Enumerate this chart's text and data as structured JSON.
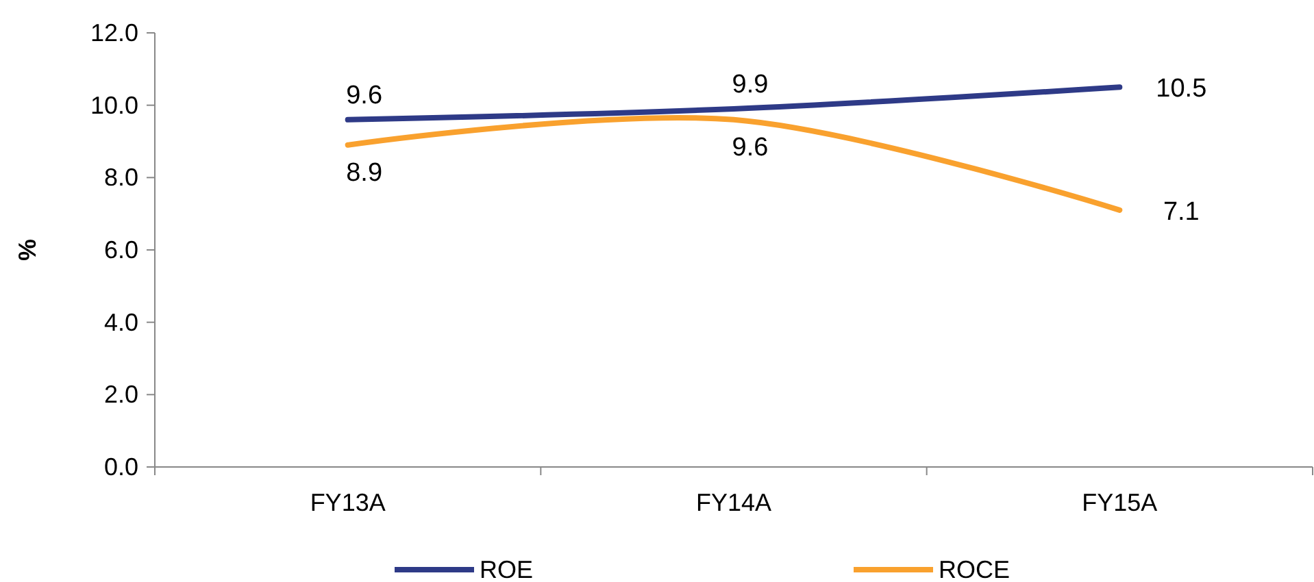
{
  "chart_data": {
    "type": "line",
    "ylabel": "%",
    "categories": [
      "FY13A",
      "FY14A",
      "FY15A"
    ],
    "series": [
      {
        "name": "ROE",
        "color": "#2e3a87",
        "values": [
          9.6,
          9.9,
          10.5
        ]
      },
      {
        "name": "ROCE",
        "color": "#f9a12e",
        "values": [
          8.9,
          9.6,
          7.1
        ]
      }
    ],
    "ylim": [
      0,
      12
    ],
    "yticks": [
      {
        "value": 0,
        "label": "0.0"
      },
      {
        "value": 2,
        "label": "2.0"
      },
      {
        "value": 4,
        "label": "4.0"
      },
      {
        "value": 6,
        "label": "6.0"
      },
      {
        "value": 8,
        "label": "8.0"
      },
      {
        "value": 10,
        "label": "10.0"
      },
      {
        "value": 12,
        "label": "12.0"
      }
    ],
    "data_labels": true,
    "legend": "bottom",
    "grid": false,
    "marker": "none",
    "line_style": "solid"
  }
}
